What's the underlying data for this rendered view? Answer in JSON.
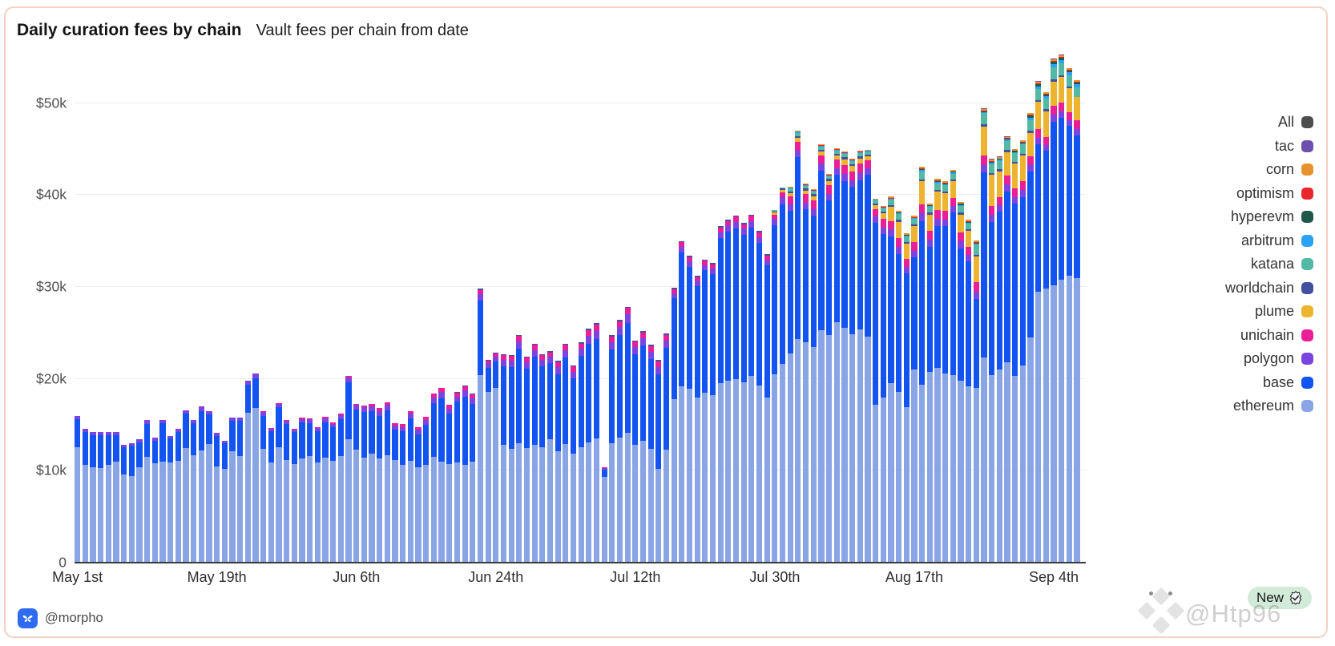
{
  "header": {
    "title": "Daily curation fees by chain",
    "subtitle": "Vault fees per chain from date"
  },
  "footer": {
    "handle": "@morpho"
  },
  "watermark": {
    "text": "@Htp96",
    "badge_label": "New"
  },
  "colors": {
    "card_border": "#f3d2c3",
    "axis_line": "#3a3a3a",
    "gridline": "#ededed",
    "morpho_blue": "#2e6bf0"
  },
  "chart_data": {
    "type": "bar",
    "stacked": true,
    "title": "Daily curation fees by chain",
    "subtitle": "Vault fees per chain from date",
    "unit": "USD thousands per day",
    "grid": "horizontal",
    "legend_position": "right",
    "num_days": 130,
    "x_ticks": [
      {
        "day": 0,
        "label": "May 1st"
      },
      {
        "day": 18,
        "label": "May 19th"
      },
      {
        "day": 36,
        "label": "Jun 6th"
      },
      {
        "day": 54,
        "label": "Jun 24th"
      },
      {
        "day": 72,
        "label": "Jul 12th"
      },
      {
        "day": 90,
        "label": "Jul 30th"
      },
      {
        "day": 108,
        "label": "Aug 17th"
      },
      {
        "day": 126,
        "label": "Sep 4th"
      }
    ],
    "y_axis": {
      "max": 56,
      "ticks": [
        {
          "v": 0,
          "label": "0"
        },
        {
          "v": 10,
          "label": "$10k"
        },
        {
          "v": 20,
          "label": "$20k"
        },
        {
          "v": 30,
          "label": "$30k"
        },
        {
          "v": 40,
          "label": "$40k"
        },
        {
          "v": 50,
          "label": "$50k"
        }
      ]
    },
    "legend": [
      {
        "label": "All",
        "color": "#4d4d4d"
      },
      {
        "label": "tac",
        "color": "#6d4fae"
      },
      {
        "label": "corn",
        "color": "#e6922e"
      },
      {
        "label": "optimism",
        "color": "#e8262c"
      },
      {
        "label": "hyperevm",
        "color": "#20594a"
      },
      {
        "label": "arbitrum",
        "color": "#2ba3f5"
      },
      {
        "label": "katana",
        "color": "#53b9a4"
      },
      {
        "label": "worldchain",
        "color": "#44509e"
      },
      {
        "label": "plume",
        "color": "#ecb42f"
      },
      {
        "label": "unichain",
        "color": "#e91f98"
      },
      {
        "label": "polygon",
        "color": "#7b44e0"
      },
      {
        "label": "base",
        "color": "#1353f0"
      },
      {
        "label": "ethereum",
        "color": "#8aa5e6"
      }
    ],
    "series": [
      {
        "name": "ethereum",
        "color": "#8aa5e6",
        "offset": 0,
        "values": [
          12.6,
          10.6,
          10.4,
          10.3,
          10.6,
          11.0,
          9.6,
          9.4,
          10.4,
          11.5,
          10.8,
          11.0,
          10.9,
          11.1,
          12.5,
          11.7,
          12.2,
          12.9,
          10.5,
          10.2,
          12.1,
          11.6,
          16.3,
          16.8,
          12.4,
          10.9,
          12.6,
          11.2,
          10.7,
          11.3,
          11.6,
          10.9,
          11.4,
          11.1,
          11.6,
          13.4,
          12.3,
          11.4,
          11.9,
          11.3,
          11.7,
          11.2,
          10.6,
          11.1,
          10.4,
          10.6,
          11.5,
          11.0,
          10.7,
          10.9,
          10.6,
          11.0,
          20.4,
          18.6,
          19.0,
          12.8,
          12.4,
          13.0,
          12.5,
          12.8,
          12.6,
          13.4,
          12.1,
          12.9,
          11.9,
          12.6,
          13.1,
          13.5,
          9.3,
          13.0,
          13.6,
          14.1,
          12.8,
          13.3,
          12.4,
          10.2,
          12.3,
          17.8,
          19.2,
          18.9,
          18.0,
          18.5,
          18.2,
          19.5,
          19.8,
          20.0,
          19.6,
          20.3,
          19.3,
          18.0,
          20.5,
          21.6,
          22.8,
          24.3,
          24.0,
          23.5,
          25.3,
          24.8,
          26.2,
          25.6,
          24.9,
          25.4,
          24.6,
          17.2,
          18.0,
          19.5,
          18.6,
          16.9,
          21.0,
          19.4,
          20.8,
          21.2,
          20.6,
          20.4,
          19.8,
          19.2,
          19.0,
          22.3,
          20.4,
          21.0,
          21.8,
          20.3,
          21.5,
          24.5,
          29.5,
          29.8,
          30.2,
          30.8,
          31.2,
          31.0
        ]
      },
      {
        "name": "base",
        "color": "#1353f0",
        "offset": 0,
        "values": [
          3.0,
          3.6,
          3.5,
          3.6,
          3.3,
          2.9,
          3.0,
          3.3,
          2.7,
          3.6,
          2.5,
          4.2,
          2.6,
          3.1,
          3.7,
          3.5,
          4.3,
          3.2,
          3.3,
          2.8,
          3.3,
          3.8,
          3.1,
          3.3,
          3.6,
          3.4,
          4.3,
          3.9,
          3.5,
          4.0,
          3.6,
          3.4,
          3.9,
          3.6,
          4.0,
          6.2,
          4.4,
          5.0,
          4.6,
          4.7,
          4.9,
          3.3,
          3.7,
          4.6,
          3.6,
          4.4,
          5.9,
          6.9,
          5.5,
          6.6,
          7.5,
          6.3,
          8.1,
          2.6,
          2.9,
          8.6,
          8.9,
          10.3,
          8.6,
          9.6,
          8.8,
          8.3,
          8.4,
          9.4,
          8.2,
          9.9,
          10.7,
          10.8,
          0.8,
          10.2,
          11.2,
          12.0,
          9.9,
          10.3,
          9.8,
          10.3,
          11.1,
          11.0,
          14.6,
          13.3,
          12.1,
          13.3,
          13.2,
          15.8,
          16.2,
          16.4,
          16.1,
          16.2,
          15.5,
          14.4,
          16.2,
          17.4,
          15.5,
          19.8,
          14.5,
          14.3,
          17.4,
          14.6,
          16.0,
          15.9,
          16.0,
          16.2,
          17.6,
          19.8,
          17.8,
          16.0,
          15.0,
          14.6,
          12.2,
          17.8,
          13.6,
          15.4,
          16.0,
          17.7,
          14.4,
          13.6,
          9.7,
          20.2,
          16.7,
          17.2,
          18.6,
          18.8,
          18.3,
          18.1,
          16.0,
          15.0,
          17.8,
          17.6,
          16.3,
          15.5
        ]
      },
      {
        "name": "polygon",
        "color": "#7b44e0",
        "offset": 0,
        "values": [
          0.35,
          0.35,
          0.3,
          0.3,
          0.35,
          0.3,
          0.25,
          0.3,
          0.3,
          0.4,
          0.3,
          0.35,
          0.3,
          0.35,
          0.4,
          0.35,
          0.5,
          0.35,
          0.3,
          0.25,
          0.4,
          0.35,
          0.4,
          0.5,
          0.4,
          0.3,
          0.4,
          0.35,
          0.3,
          0.35,
          0.4,
          0.35,
          0.4,
          0.4,
          0.45,
          0.55,
          0.45,
          0.5,
          0.5,
          0.5,
          0.55,
          0.4,
          0.45,
          0.5,
          0.45,
          0.5,
          0.6,
          0.65,
          0.55,
          0.6,
          0.65,
          0.6,
          0.7,
          0.5,
          0.55,
          0.7,
          0.7,
          0.8,
          0.7,
          0.75,
          0.7,
          0.7,
          0.75,
          0.8,
          0.7,
          0.75,
          0.85,
          0.9,
          0.2,
          0.8,
          0.85,
          0.9,
          0.75,
          0.8,
          0.75,
          0.8,
          0.8,
          0.55,
          0.6,
          0.6,
          0.6,
          0.6,
          0.6,
          0.65,
          0.7,
          0.7,
          0.65,
          0.7,
          0.65,
          0.6,
          0.7,
          0.75,
          0.7,
          0.75,
          0.7,
          0.7,
          0.75,
          0.7,
          0.75,
          0.8,
          0.75,
          0.8,
          0.7,
          0.65,
          0.7,
          0.75,
          0.75,
          0.7,
          0.75,
          0.8,
          0.75,
          0.8,
          0.75,
          0.7,
          0.75,
          0.7,
          0.8,
          0.8,
          0.75,
          0.7,
          0.75,
          0.7,
          0.75,
          0.7,
          0.7,
          0.65,
          0.75,
          0.7,
          0.65,
          0.7
        ]
      },
      {
        "name": "unichain",
        "color": "#e91f98",
        "offset": 24,
        "values": [
          0.1,
          0.1,
          0.1,
          0.1,
          0.1,
          0.1,
          0.1,
          0.1,
          0.15,
          0.15,
          0.15,
          0.15,
          0.15,
          0.2,
          0.25,
          0.3,
          0.3,
          0.25,
          0.3,
          0.3,
          0.3,
          0.35,
          0.4,
          0.45,
          0.4,
          0.4,
          0.45,
          0.4,
          0.5,
          0.3,
          0.35,
          0.5,
          0.5,
          0.55,
          0.5,
          0.55,
          0.5,
          0.5,
          0.55,
          0.6,
          0.55,
          0.6,
          0.65,
          0.7,
          0.1,
          0.6,
          0.65,
          0.7,
          0.6,
          0.65,
          0.6,
          0.6,
          0.6,
          0.4,
          0.45,
          0.45,
          0.4,
          0.45,
          0.45,
          0.5,
          0.5,
          0.55,
          0.5,
          0.55,
          0.5,
          0.45,
          0.5,
          0.55,
          0.9,
          0.95,
          0.9,
          0.95,
          0.9,
          0.95,
          0.9,
          1.0,
          0.95,
          1.0,
          0.9,
          0.85,
          0.9,
          0.95,
          0.95,
          0.9,
          0.95,
          1.0,
          0.95,
          1.0,
          0.95,
          0.9,
          0.95,
          0.9,
          1.0,
          1.0,
          0.95,
          0.9,
          0.95,
          0.9,
          0.95,
          0.9,
          0.95,
          0.9,
          1.0,
          0.95,
          0.9,
          0.95
        ]
      },
      {
        "name": "plume",
        "color": "#ecb42f",
        "offset": 90,
        "values": [
          0.2,
          0.25,
          0.3,
          0.45,
          0.4,
          0.45,
          0.4,
          0.5,
          0.45,
          0.6,
          0.55,
          0.6,
          0.4,
          0.4,
          0.6,
          1.5,
          1.8,
          1.6,
          1.7,
          2.5,
          1.8,
          2.0,
          1.9,
          1.8,
          2.0,
          1.7,
          2.8,
          3.2,
          3.4,
          2.8,
          2.6,
          2.7,
          2.8,
          2.6,
          3.0,
          2.8,
          2.6,
          2.8,
          2.6,
          2.5
        ]
      },
      {
        "name": "worldchain",
        "color": "#44509e",
        "offset": 49,
        "values": [
          0.1,
          0.1,
          0.1,
          0.1,
          0.1,
          0.1,
          0.1,
          0.1,
          0.1,
          0.1,
          0.1,
          0.1,
          0.15,
          0.15,
          0.15,
          0.15,
          0.15,
          0.15,
          0.15,
          0,
          0.15,
          0.15,
          0.15,
          0.15,
          0.15,
          0.15,
          0.15,
          0.15,
          0.15,
          0.15,
          0.15,
          0.15,
          0.15,
          0.15,
          0.15,
          0.15,
          0.15,
          0.15,
          0.15,
          0.15,
          0.15,
          0.15,
          0.2,
          0.2,
          0.2,
          0.2,
          0.2,
          0.2,
          0.2,
          0.2,
          0.2,
          0.2,
          0.2,
          0.2,
          0.2,
          0.2,
          0.2,
          0.2,
          0.2,
          0.2,
          0.2,
          0.2,
          0.2,
          0.2,
          0.2,
          0.2,
          0.2,
          0.2,
          0.2,
          0.2,
          0.2,
          0.2,
          0.2,
          0.2,
          0.25,
          0.2,
          0.25,
          0.25,
          0.2,
          0.2
        ]
      },
      {
        "name": "katana",
        "color": "#53b9a4",
        "offset": 90,
        "values": [
          0.1,
          0.1,
          0.3,
          0.35,
          0.3,
          0.3,
          0.35,
          0.3,
          0.35,
          0.4,
          0.35,
          0.4,
          0.3,
          0.3,
          0.35,
          0.6,
          0.65,
          0.6,
          0.6,
          0.9,
          0.65,
          0.7,
          0.7,
          0.65,
          0.7,
          0.6,
          1.1,
          1.2,
          1.0,
          0.9,
          1.0,
          0.95,
          1.0,
          1.1,
          1.2,
          1.1,
          1.3,
          1.3,
          1.2,
          1.1
        ]
      },
      {
        "name": "arbitrum",
        "color": "#2ba3f5",
        "offset": 92,
        "values": [
          0.1,
          0.1,
          0.1,
          0.1,
          0.1,
          0.1,
          0.1,
          0.1,
          0.1,
          0.1,
          0.1,
          0.1,
          0.1,
          0.1,
          0.1,
          0.1,
          0.1,
          0.15,
          0.1,
          0.15,
          0.1,
          0.1,
          0.15,
          0.1,
          0.15,
          0.15,
          0.15,
          0.15,
          0.15,
          0.15,
          0.15,
          0.3,
          0.3,
          0.25,
          0.35,
          0.35,
          0.3,
          0.3
        ]
      },
      {
        "name": "hyperevm",
        "color": "#20594a",
        "offset": 105,
        "values": [
          0.05,
          0.05,
          0.05,
          0.05,
          0.1,
          0.05,
          0.1,
          0.1,
          0.1,
          0.1,
          0.1,
          0.1,
          0.1,
          0.1,
          0.1,
          0.1,
          0.1,
          0.1,
          0.2,
          0.2,
          0.2,
          0.25,
          0.25,
          0.2,
          0.2
        ]
      },
      {
        "name": "optimism",
        "color": "#e8262c",
        "offset": 92,
        "values": [
          0.05,
          0.05,
          0.05,
          0.05,
          0.05,
          0.05,
          0.05,
          0.05,
          0.05,
          0.05,
          0.05,
          0.05,
          0.05,
          0.05,
          0.05,
          0.05,
          0.05,
          0.05,
          0.05,
          0.05,
          0.05,
          0.05,
          0.05,
          0.05,
          0.05,
          0.05,
          0.05,
          0.05,
          0.05,
          0.05,
          0.05,
          0.1,
          0.1,
          0.1,
          0.1,
          0.1,
          0.1,
          0.1
        ]
      },
      {
        "name": "corn",
        "color": "#e6922e",
        "offset": 92,
        "values": [
          0.1,
          0.1,
          0.1,
          0.1,
          0.1,
          0.1,
          0.1,
          0.1,
          0.1,
          0.1,
          0.1,
          0.1,
          0.1,
          0.15,
          0.15,
          0.15,
          0.15,
          0.2,
          0.15,
          0.15,
          0.15,
          0.15,
          0.15,
          0.15,
          0.15,
          0.2,
          0.2,
          0.15,
          0.15,
          0.15,
          0.15,
          0.15,
          0.2,
          0.15,
          0.2,
          0.2,
          0.15,
          0.15
        ]
      },
      {
        "name": "tac",
        "color": "#6d4fae",
        "offset": 116,
        "values": [
          0.05,
          0.05,
          0.05,
          0.05,
          0.05,
          0.05,
          0.05,
          0.05,
          0.1,
          0.05,
          0.1,
          0.1,
          0.05,
          0.05
        ]
      }
    ]
  }
}
